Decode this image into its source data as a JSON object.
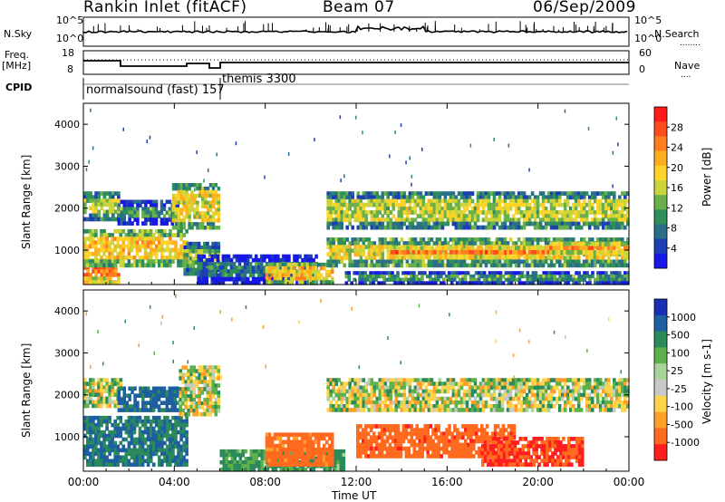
{
  "header": {
    "station": "Rankin Inlet (fitACF)",
    "beam": "Beam 07",
    "date": "06/Sep/2009"
  },
  "strip_labels": {
    "nsky": "N.Sky",
    "nsearch": "N.Search",
    "nsearch_line": "........",
    "freq": "Freq.",
    "freq_unit": "[MHz]",
    "nave": "Nave",
    "nave_line": "....",
    "cpid": "CPID",
    "noise_ticks_left": [
      "10^5",
      "10^0"
    ],
    "noise_ticks_right": [
      "10^5",
      "10^0"
    ],
    "freq_ticks": [
      "18",
      "8"
    ],
    "nave_ticks": [
      "60",
      "0"
    ]
  },
  "cpid_segments": [
    {
      "label": "normalsound (fast) 157"
    },
    {
      "label": "themis 3300"
    }
  ],
  "axes": {
    "x_ticks": [
      "00:00",
      "04:00",
      "08:00",
      "12:00",
      "16:00",
      "20:00",
      "00:00"
    ],
    "x_title": "Time UT",
    "y_ticks": [
      "1000",
      "2000",
      "3000",
      "4000"
    ],
    "y_title": "Slant Range [km]"
  },
  "colorbars": {
    "power": {
      "title": "Power [dB]",
      "ticks": [
        "28",
        "24",
        "20",
        "16",
        "12",
        "8",
        "4"
      ],
      "colors": [
        "#ff1b1b",
        "#ff4d1d",
        "#ff7f1f",
        "#ffae1f",
        "#ffd42a",
        "#cbd43a",
        "#6ab04a",
        "#2f8f5b",
        "#2a6e8a",
        "#1d3fb3",
        "#1717e8"
      ]
    },
    "velocity": {
      "title": "Velocity [m s-1]",
      "ticks": [
        "1000",
        "500",
        "100",
        "25",
        "-25",
        "-100",
        "-500",
        "-1000"
      ],
      "colors": [
        "#1a2fb4",
        "#1d5fa0",
        "#2b8a5a",
        "#5db04a",
        "#a8d49a",
        "#c8c8c8",
        "#ffd44a",
        "#ff9f2a",
        "#ff6a1f",
        "#ff1f1f"
      ]
    }
  },
  "chart_data": [
    {
      "type": "heatmap",
      "title": "Power",
      "xlabel": "Time UT",
      "ylabel": "Slant Range [km]",
      "xlim": [
        "00:00",
        "24:00"
      ],
      "ylim": [
        180,
        4500
      ],
      "colorbar": {
        "label": "Power [dB]",
        "range": [
          0,
          32
        ]
      },
      "bands": [
        {
          "start": 0.0,
          "end": 1.6,
          "range_lo": 200,
          "range_hi": 800,
          "value": 26
        },
        {
          "start": 0.0,
          "end": 4.6,
          "range_lo": 600,
          "range_hi": 1500,
          "value": 20
        },
        {
          "start": 0.0,
          "end": 1.6,
          "range_lo": 1700,
          "range_hi": 2400,
          "value": 15
        },
        {
          "start": 1.5,
          "end": 4.2,
          "range_lo": 1600,
          "range_hi": 2200,
          "value": 10
        },
        {
          "start": 3.9,
          "end": 6.0,
          "range_lo": 1500,
          "range_hi": 2600,
          "value": 18
        },
        {
          "start": 4.4,
          "end": 6.0,
          "range_lo": 400,
          "range_hi": 1200,
          "value": 14
        },
        {
          "start": 5.0,
          "end": 10.3,
          "range_lo": 180,
          "range_hi": 900,
          "value": 7
        },
        {
          "start": 8.0,
          "end": 11.0,
          "range_lo": 200,
          "range_hi": 700,
          "value": 20
        },
        {
          "start": 10.7,
          "end": 24.0,
          "range_lo": 1500,
          "range_hi": 2400,
          "value": 16
        },
        {
          "start": 10.7,
          "end": 24.0,
          "range_lo": 600,
          "range_hi": 1300,
          "value": 18
        },
        {
          "start": 11.5,
          "end": 24.0,
          "range_lo": 180,
          "range_hi": 500,
          "value": 10
        },
        {
          "start": 13.5,
          "end": 21.0,
          "range_lo": 800,
          "range_hi": 1100,
          "value": 26
        },
        {
          "start": 20.5,
          "end": 24.0,
          "range_lo": 900,
          "range_hi": 1200,
          "value": 24
        }
      ]
    },
    {
      "type": "heatmap",
      "title": "Velocity",
      "xlabel": "Time UT",
      "ylabel": "Slant Range [km]",
      "xlim": [
        "00:00",
        "24:00"
      ],
      "ylim": [
        180,
        4500
      ],
      "colorbar": {
        "label": "Velocity [m s-1]",
        "range": [
          -1000,
          1000
        ]
      },
      "bands": [
        {
          "start": 0.0,
          "end": 4.6,
          "range_lo": 300,
          "range_hi": 1500,
          "value": 100
        },
        {
          "start": 0.0,
          "end": 1.7,
          "range_lo": 1700,
          "range_hi": 2400,
          "value": 0
        },
        {
          "start": 1.5,
          "end": 4.2,
          "range_lo": 1600,
          "range_hi": 2200,
          "value": 150
        },
        {
          "start": 4.2,
          "end": 6.0,
          "range_lo": 1500,
          "range_hi": 2700,
          "value": 0
        },
        {
          "start": 6.0,
          "end": 11.5,
          "range_lo": 180,
          "range_hi": 700,
          "value": 30
        },
        {
          "start": 8.0,
          "end": 11.0,
          "range_lo": 300,
          "range_hi": 1100,
          "value": -200
        },
        {
          "start": 10.7,
          "end": 24.0,
          "range_lo": 1600,
          "range_hi": 2400,
          "value": 0
        },
        {
          "start": 12.0,
          "end": 19.0,
          "range_lo": 500,
          "range_hi": 1300,
          "value": -300
        },
        {
          "start": 17.5,
          "end": 22.0,
          "range_lo": 300,
          "range_hi": 1000,
          "value": -500
        }
      ]
    }
  ]
}
